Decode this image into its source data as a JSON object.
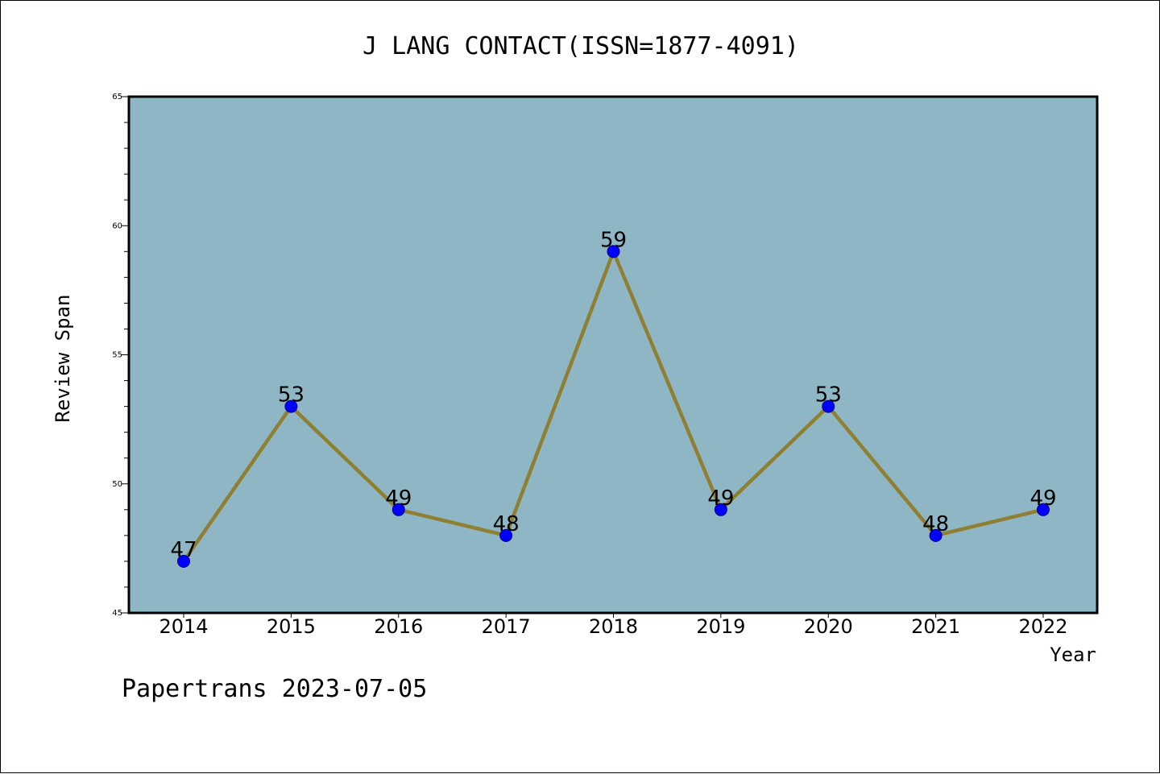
{
  "chart_data": {
    "type": "line",
    "title": "J LANG CONTACT(ISSN=1877-4091)",
    "xlabel": "Year",
    "ylabel": "Review Span",
    "categories": [
      "2014",
      "2015",
      "2016",
      "2017",
      "2018",
      "2019",
      "2020",
      "2021",
      "2022"
    ],
    "values": [
      47,
      53,
      49,
      48,
      59,
      49,
      53,
      48,
      49
    ],
    "data_labels": [
      "47",
      "53",
      "49",
      "48",
      "59",
      "49",
      "53",
      "48",
      "49"
    ],
    "ylim": [
      45,
      65
    ],
    "y_ticks": [
      "45",
      "50",
      "55",
      "60",
      "65"
    ],
    "y_minor_step": 1,
    "grid": false,
    "legend": "none"
  },
  "footer": {
    "text": "Papertrans 2023-07-05"
  },
  "colors": {
    "plot_background": "#8fb6c4",
    "line": "#8f7f32",
    "marker": "#0000ff",
    "marker_edge": "#00008b",
    "axis": "#000000"
  }
}
